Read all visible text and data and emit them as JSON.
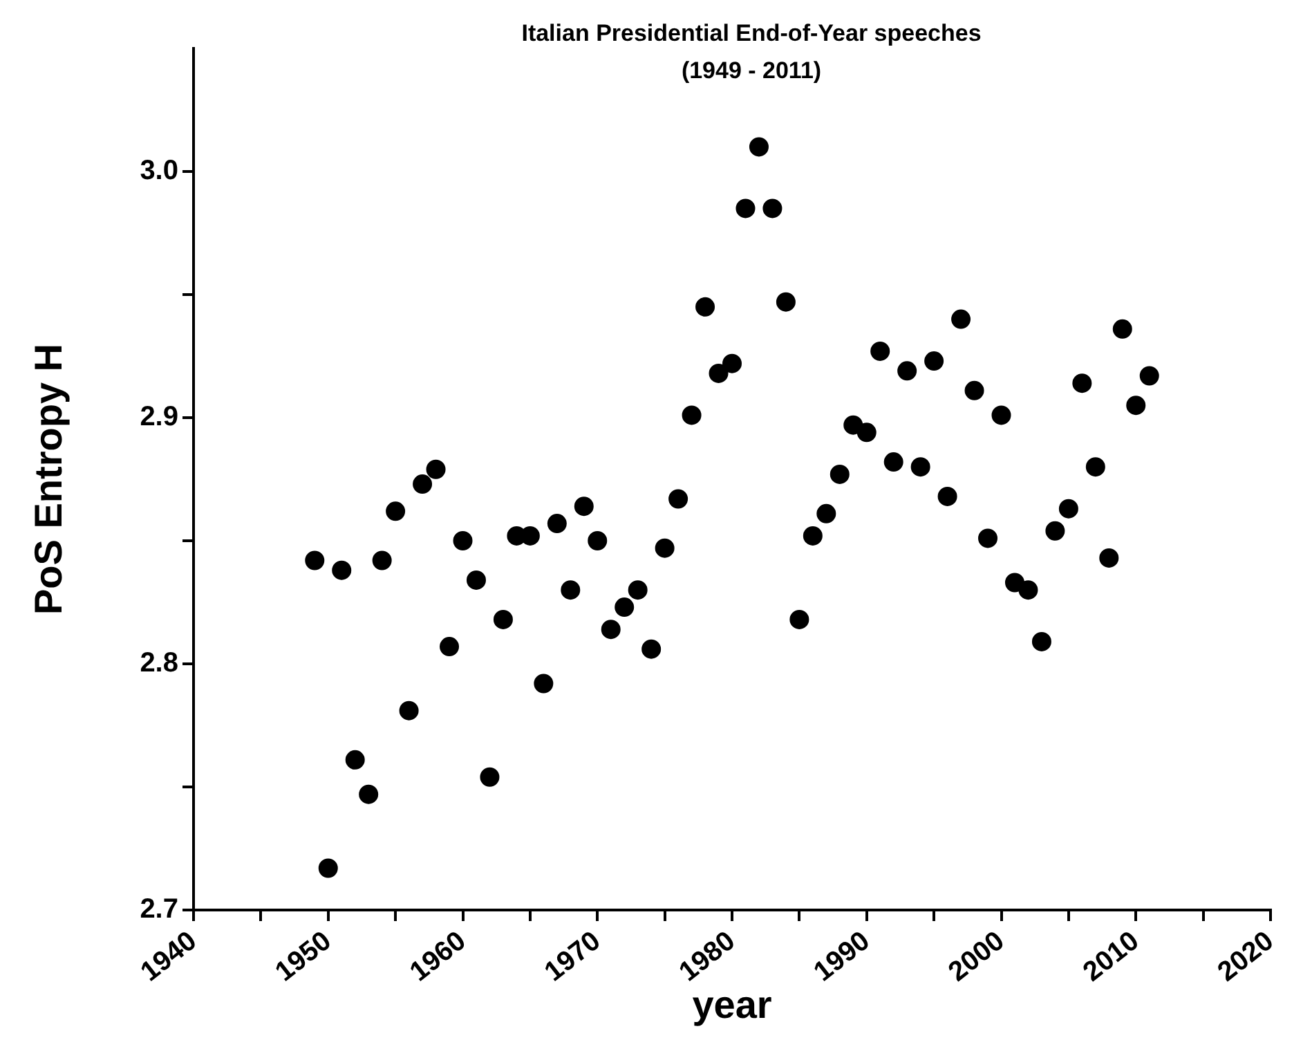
{
  "chart_data": {
    "type": "scatter",
    "title": "Italian Presidential End-of-Year speeches\n(1949 - 2011)",
    "xlabel": "year",
    "ylabel": "PoS Entropy H",
    "x": [
      1949,
      1950,
      1951,
      1952,
      1953,
      1954,
      1955,
      1956,
      1957,
      1958,
      1959,
      1960,
      1961,
      1962,
      1963,
      1964,
      1965,
      1966,
      1967,
      1968,
      1969,
      1970,
      1971,
      1972,
      1973,
      1974,
      1975,
      1976,
      1977,
      1978,
      1979,
      1980,
      1981,
      1982,
      1983,
      1984,
      1985,
      1986,
      1987,
      1988,
      1989,
      1990,
      1991,
      1992,
      1993,
      1994,
      1995,
      1996,
      1997,
      1998,
      1999,
      2000,
      2001,
      2002,
      2003,
      2004,
      2005,
      2006,
      2007,
      2008,
      2009,
      2010,
      2011
    ],
    "series": [
      {
        "color": "#000000",
        "values": [
          2.842,
          2.717,
          2.838,
          2.761,
          2.747,
          2.842,
          2.862,
          2.781,
          2.873,
          2.879,
          2.807,
          2.85,
          2.834,
          2.754,
          2.818,
          2.852,
          2.852,
          2.792,
          2.857,
          2.83,
          2.864,
          2.85,
          2.814,
          2.823,
          2.83,
          2.806,
          2.847,
          2.867,
          2.901,
          2.945,
          2.918,
          2.922,
          2.985,
          3.01,
          2.985,
          2.947,
          2.818,
          2.852,
          2.861,
          2.877,
          2.897,
          2.894,
          2.927,
          2.882,
          2.919,
          2.88,
          2.923,
          2.868,
          2.94,
          2.911,
          2.851,
          2.901,
          2.833,
          2.83,
          2.809,
          2.854,
          2.863,
          2.914,
          2.88,
          2.843,
          2.936,
          2.905,
          2.917
        ]
      }
    ],
    "xlim": [
      1940,
      2020
    ],
    "xticks": [
      1940,
      {
        "value": 1945,
        "label": null
      },
      1950,
      {
        "value": 1955,
        "label": null
      },
      1960,
      {
        "value": 1965,
        "label": null
      },
      1970,
      {
        "value": 1975,
        "label": null
      },
      1980,
      {
        "value": 1985,
        "label": null
      },
      1990,
      {
        "value": 1995,
        "label": null
      },
      2000,
      {
        "value": 2005,
        "label": null
      },
      2010,
      {
        "value": 2015,
        "label": null
      },
      2020
    ],
    "ylim": [
      2.7,
      3.05
    ],
    "yticks": [
      2.7,
      {
        "value": 2.75,
        "label": null
      },
      2.8,
      {
        "value": 2.85,
        "label": null
      },
      2.9,
      {
        "value": 2.95,
        "label": null
      },
      {
        "value": 3.0,
        "label": "3.0"
      }
    ],
    "grid": false,
    "legend": false,
    "marker": "circle"
  }
}
